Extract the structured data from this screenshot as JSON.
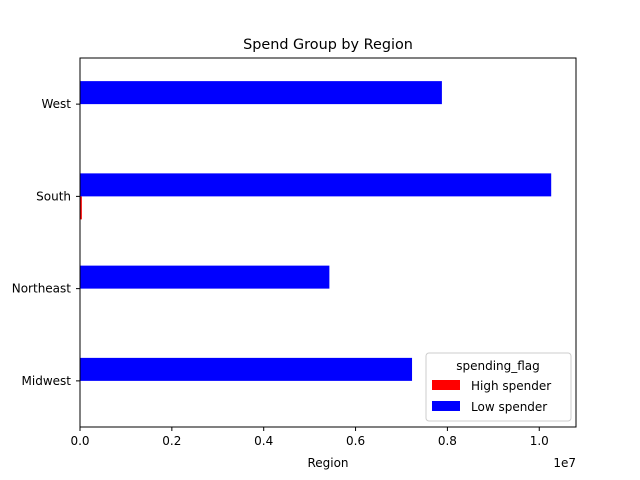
{
  "chart_data": {
    "type": "bar",
    "orientation": "horizontal",
    "title": "Spend Group by Region",
    "xlabel": "Region",
    "ylabel": "",
    "x_offset_text": "1e7",
    "xlim": [
      0,
      10800000
    ],
    "x_ticks": [
      0,
      2000000,
      4000000,
      6000000,
      8000000,
      10000000
    ],
    "x_tick_labels": [
      "0.0",
      "0.2",
      "0.4",
      "0.6",
      "0.8",
      "1.0"
    ],
    "categories": [
      "Midwest",
      "Northeast",
      "South",
      "West"
    ],
    "series": [
      {
        "name": "High spender",
        "color": "#ff0000",
        "values": [
          0,
          0,
          40000,
          0
        ]
      },
      {
        "name": "Low spender",
        "color": "#0000ff",
        "values": [
          7230000,
          5430000,
          10260000,
          7880000
        ]
      }
    ],
    "legend": {
      "title": "spending_flag",
      "position": "lower right"
    },
    "grid": false
  }
}
